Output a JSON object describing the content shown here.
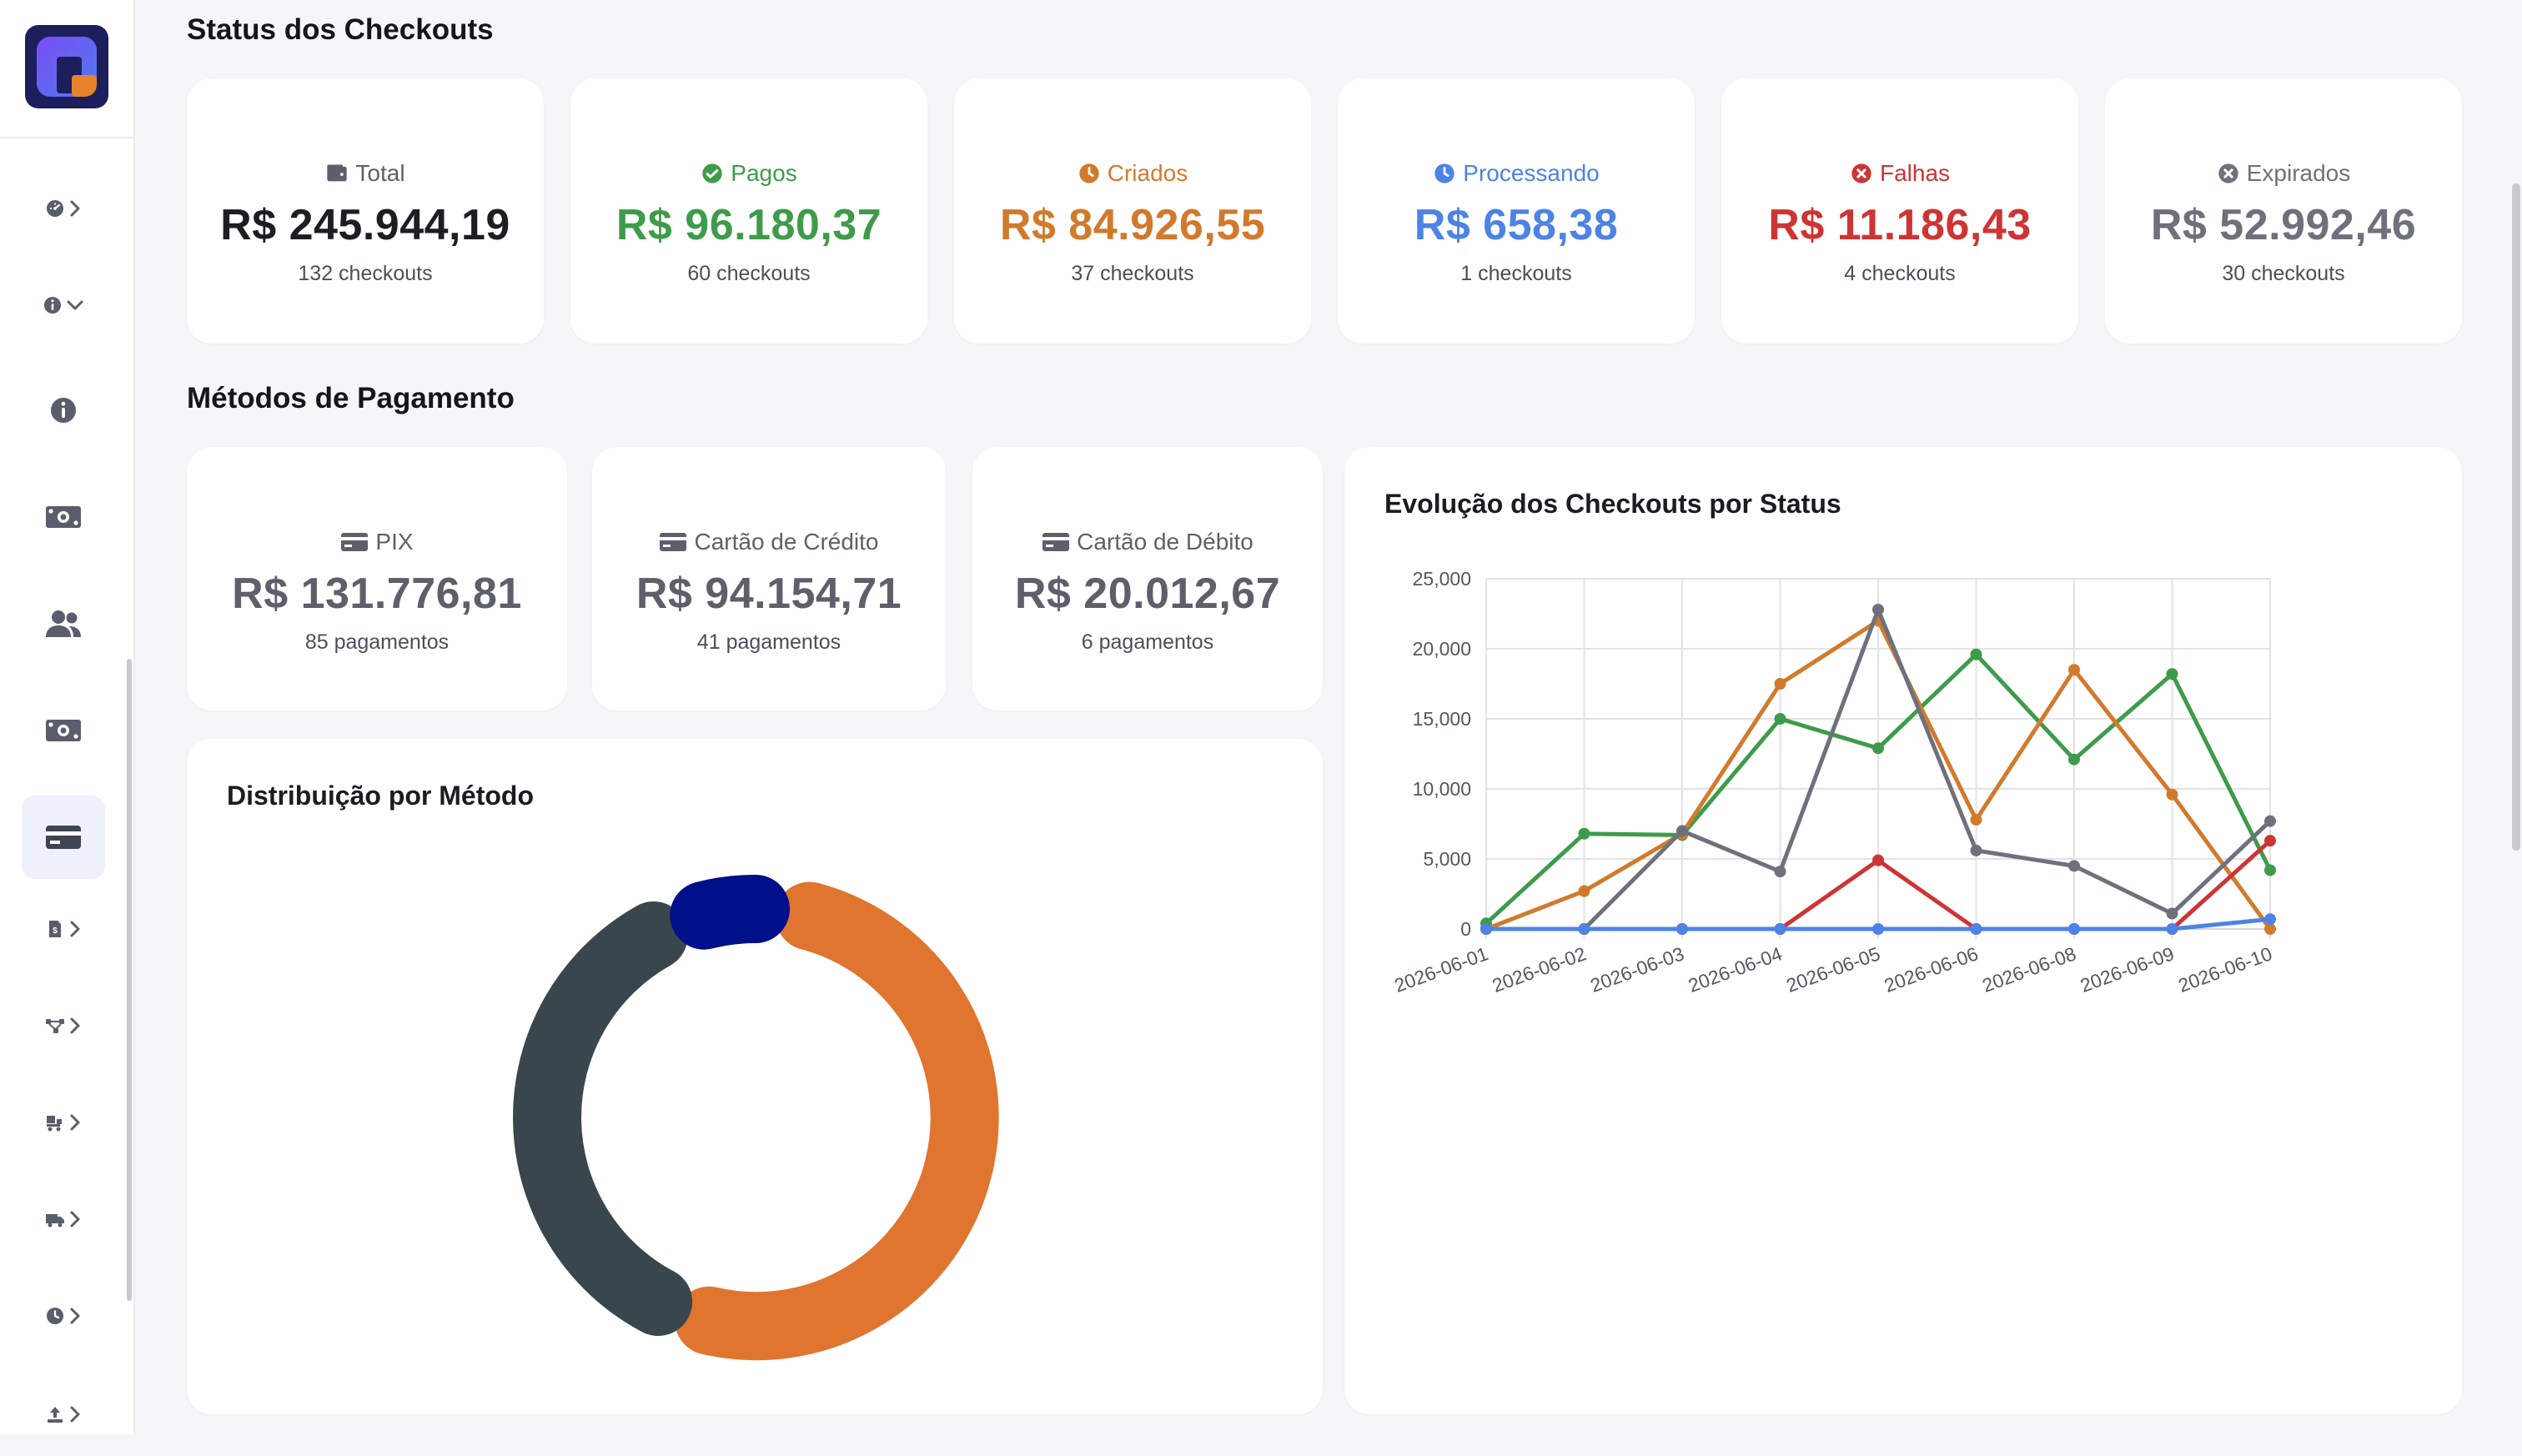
{
  "sections": {
    "status_title": "Status dos Checkouts",
    "methods_title": "Métodos de Pagamento"
  },
  "status_cards": [
    {
      "label": "Total",
      "value": "R$ 245.944,19",
      "count": "132 checkouts",
      "color": "#1d1d23",
      "icon": "wallet-icon"
    },
    {
      "label": "Pagos",
      "value": "R$ 96.180,37",
      "count": "60 checkouts",
      "color": "#3e9b4a",
      "icon": "check-circle-icon"
    },
    {
      "label": "Criados",
      "value": "R$ 84.926,55",
      "count": "37 checkouts",
      "color": "#d27a2c",
      "icon": "clock-icon"
    },
    {
      "label": "Processando",
      "value": "R$ 658,38",
      "count": "1 checkouts",
      "color": "#4d83e5",
      "icon": "clock-icon"
    },
    {
      "label": "Falhas",
      "value": "R$ 11.186,43",
      "count": "4 checkouts",
      "color": "#cf3434",
      "icon": "x-circle-icon"
    },
    {
      "label": "Expirados",
      "value": "R$ 52.992,46",
      "count": "30 checkouts",
      "color": "#6e717d",
      "icon": "x-circle-icon"
    }
  ],
  "method_cards": [
    {
      "label": "PIX",
      "value": "R$ 131.776,81",
      "count": "85 pagamentos",
      "icon": "card-icon"
    },
    {
      "label": "Cartão de Crédito",
      "value": "R$ 94.154,71",
      "count": "41 pagamentos",
      "icon": "card-icon"
    },
    {
      "label": "Cartão de Débito",
      "value": "R$ 20.012,67",
      "count": "6 pagamentos",
      "icon": "card-icon"
    }
  ],
  "sidebar": {
    "items": [
      {
        "icon": "gauge-icon",
        "chevron": "right"
      },
      {
        "icon": "info-icon",
        "chevron": "down"
      },
      {
        "icon": "info-icon",
        "chevron": ""
      },
      {
        "icon": "money-icon",
        "chevron": ""
      },
      {
        "icon": "users-icon",
        "chevron": ""
      },
      {
        "icon": "money-icon",
        "chevron": ""
      },
      {
        "icon": "credit-card-icon",
        "chevron": "",
        "active": true
      },
      {
        "icon": "invoice-icon",
        "chevron": "right"
      },
      {
        "icon": "network-icon",
        "chevron": "right"
      },
      {
        "icon": "truck-loading-icon",
        "chevron": "right"
      },
      {
        "icon": "truck-icon",
        "chevron": "right"
      },
      {
        "icon": "history-icon",
        "chevron": "right"
      },
      {
        "icon": "upload-icon",
        "chevron": "right"
      }
    ]
  },
  "chart_data": [
    {
      "type": "pie",
      "title": "Distribuição por Método",
      "donut": true,
      "categories": [
        "PIX",
        "Cartão de Crédito",
        "Cartão de Débito"
      ],
      "values": [
        131776.81,
        94154.71,
        20012.67
      ],
      "colors": [
        "#e07530",
        "#3a464d",
        "#000f8a"
      ]
    },
    {
      "type": "line",
      "title": "Evolução dos Checkouts por Status",
      "categories": [
        "2026-06-01",
        "2026-06-02",
        "2026-06-03",
        "2026-06-04",
        "2026-06-05",
        "2026-06-06",
        "2026-06-08",
        "2026-06-09",
        "2026-06-10"
      ],
      "ylim": [
        0,
        25000
      ],
      "yticks": [
        0,
        5000,
        10000,
        15000,
        20000,
        25000
      ],
      "ytick_labels": [
        "0",
        "5,000",
        "10,000",
        "15,000",
        "20,000",
        "25,000"
      ],
      "grid": true,
      "series": [
        {
          "values": [
            400,
            6800,
            6700,
            15000,
            12900,
            19600,
            12100,
            18200,
            4200
          ],
          "color": "#3e9b4a"
        },
        {
          "values": [
            0,
            2700,
            6800,
            17500,
            22000,
            7800,
            18500,
            9600,
            0
          ],
          "color": "#d27a2c"
        },
        {
          "values": [
            0,
            0,
            7000,
            4100,
            22800,
            5600,
            4500,
            1100,
            7700
          ],
          "color": "#6e717d"
        },
        {
          "values": [
            0,
            0,
            0,
            0,
            4900,
            0,
            0,
            0,
            6300
          ],
          "color": "#cf3434"
        },
        {
          "values": [
            0,
            0,
            0,
            0,
            0,
            0,
            0,
            0,
            700
          ],
          "color": "#4d83e5"
        }
      ]
    }
  ]
}
